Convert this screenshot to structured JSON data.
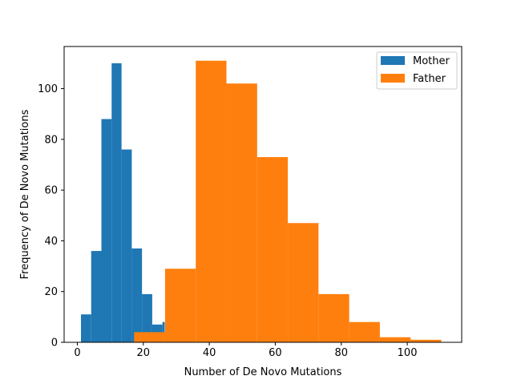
{
  "chart_data": {
    "type": "histogram",
    "xlabel": "Number of De Novo Mutations",
    "ylabel": "Frequency of De Novo Mutations",
    "xlim": [
      -4,
      116.5
    ],
    "ylim": [
      0,
      116.6
    ],
    "xticks": [
      0,
      20,
      40,
      60,
      80,
      100
    ],
    "yticks": [
      0,
      20,
      40,
      60,
      80,
      100
    ],
    "grid": false,
    "legend_position": "top-right",
    "series": [
      {
        "name": "Mother",
        "color": "#1f77b4",
        "bin_edges": [
          1.1,
          4.2,
          7.3,
          10.4,
          13.4,
          16.5,
          19.6,
          22.7,
          25.8
        ],
        "counts": [
          11,
          36,
          88,
          110,
          76,
          37,
          19,
          7,
          8
        ],
        "bin_right": 26.5
      },
      {
        "name": "Father",
        "color": "#ff7f0e",
        "bin_edges": [
          17.2,
          26.6,
          35.9,
          45.2,
          54.5,
          63.8,
          73.1,
          82.4,
          91.7,
          101.0
        ],
        "counts": [
          4,
          29,
          111,
          102,
          73,
          47,
          19,
          8,
          2,
          1
        ],
        "bin_right": 110.3
      }
    ]
  }
}
